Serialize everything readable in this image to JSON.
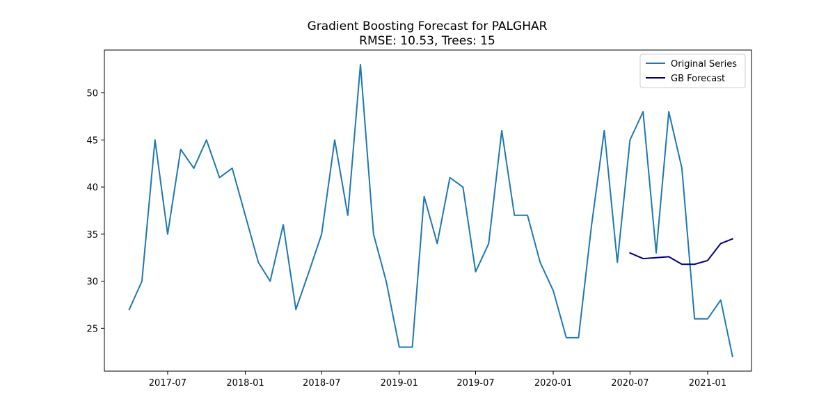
{
  "chart_data": {
    "type": "line",
    "title": "Gradient Boosting Forecast for PALGHAR",
    "subtitle": "RMSE: 10.53, Trees: 15",
    "xlabel": "",
    "ylabel": "",
    "xlim": [
      "2017-02-01",
      "2021-04-15"
    ],
    "ylim": [
      20.45,
      54.55
    ],
    "grid": false,
    "legend_position": "top-right",
    "x_ticks": [
      "2017-07",
      "2018-01",
      "2018-07",
      "2019-01",
      "2019-07",
      "2020-01",
      "2020-07",
      "2021-01"
    ],
    "y_ticks": [
      25,
      30,
      35,
      40,
      45,
      50
    ],
    "series": [
      {
        "name": "Original Series",
        "color": "#1f77b4",
        "x": [
          "2017-04-01",
          "2017-05-01",
          "2017-06-01",
          "2017-07-01",
          "2017-08-01",
          "2017-09-01",
          "2017-10-01",
          "2017-11-01",
          "2017-12-01",
          "2018-01-01",
          "2018-02-01",
          "2018-03-01",
          "2018-04-01",
          "2018-05-01",
          "2018-06-01",
          "2018-07-01",
          "2018-08-01",
          "2018-09-01",
          "2018-10-01",
          "2018-11-01",
          "2018-12-01",
          "2019-01-01",
          "2019-02-01",
          "2019-03-01",
          "2019-04-01",
          "2019-05-01",
          "2019-06-01",
          "2019-07-01",
          "2019-08-01",
          "2019-09-01",
          "2019-10-01",
          "2019-11-01",
          "2019-12-01",
          "2020-01-01",
          "2020-02-01",
          "2020-03-01",
          "2020-04-01",
          "2020-05-01",
          "2020-06-01",
          "2020-07-01",
          "2020-08-01",
          "2020-09-01",
          "2020-10-01",
          "2020-11-01",
          "2020-12-01",
          "2021-01-01",
          "2021-02-01",
          "2021-03-01"
        ],
        "values": [
          27,
          30,
          45,
          35,
          44,
          42,
          45,
          41,
          42,
          37,
          32,
          30,
          36,
          27,
          31,
          35,
          45,
          37,
          53,
          35,
          30,
          23,
          23,
          39,
          34,
          41,
          40,
          31,
          34,
          46,
          37,
          37,
          32,
          29,
          24,
          24,
          36,
          46,
          32,
          45,
          48,
          33,
          48,
          42,
          26,
          26,
          28,
          22
        ]
      },
      {
        "name": "GB Forecast",
        "color": "#000080",
        "x": [
          "2020-07-01",
          "2020-08-01",
          "2020-09-01",
          "2020-10-01",
          "2020-11-01",
          "2020-12-01",
          "2021-01-01",
          "2021-02-01",
          "2021-03-01"
        ],
        "values": [
          33.0,
          32.4,
          32.5,
          32.6,
          31.8,
          31.8,
          32.2,
          34.0,
          34.5
        ]
      }
    ]
  }
}
